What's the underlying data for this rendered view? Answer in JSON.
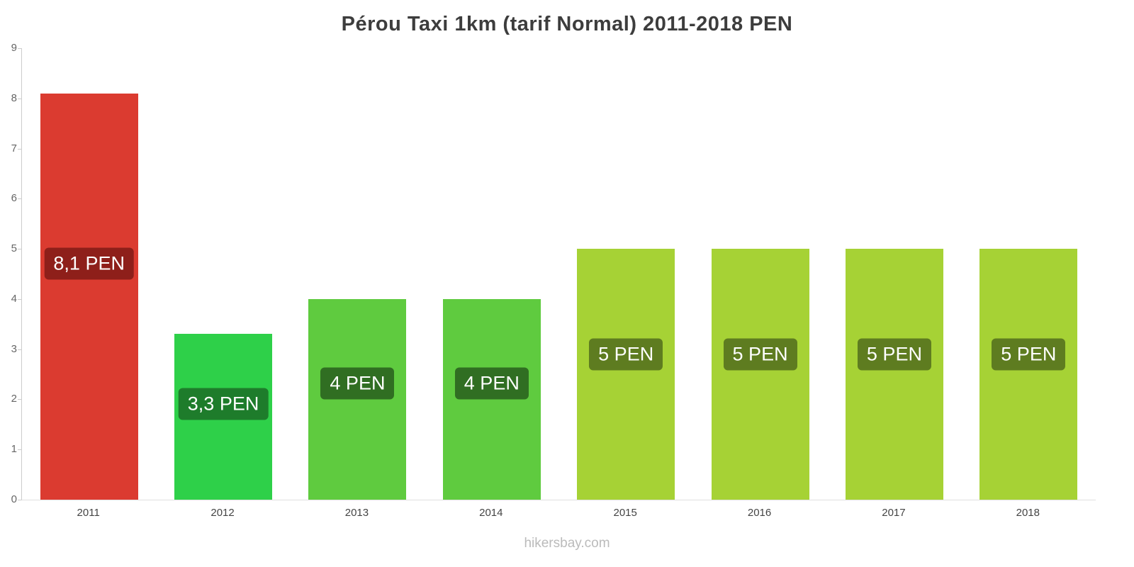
{
  "title": "Pérou Taxi 1km (tarif Normal) 2011-2018 PEN",
  "footer": "hikersbay.com",
  "chart_data": {
    "type": "bar",
    "title": "Pérou Taxi 1km (tarif Normal) 2011-2018 PEN",
    "categories": [
      "2011",
      "2012",
      "2013",
      "2014",
      "2015",
      "2016",
      "2017",
      "2018"
    ],
    "values": [
      8.1,
      3.3,
      4,
      4,
      5,
      5,
      5,
      5
    ],
    "data_labels": [
      "8,1 PEN",
      "3,3 PEN",
      "4 PEN",
      "4 PEN",
      "5 PEN",
      "5 PEN",
      "5 PEN",
      "5 PEN"
    ],
    "bar_colors": [
      "#db3b30",
      "#2ed049",
      "#5fcb3f",
      "#5fcb3f",
      "#a6d235",
      "#a6d235",
      "#a6d235",
      "#a6d235"
    ],
    "label_bg_colors": [
      "#8e1f1a",
      "#1e7c2b",
      "#306e22",
      "#306e22",
      "#5e7c20",
      "#5e7c20",
      "#5e7c20",
      "#5e7c20"
    ],
    "xlabel": "",
    "ylabel": "",
    "ylim": [
      0,
      9
    ],
    "yticks": [
      0,
      1,
      2,
      3,
      4,
      5,
      6,
      7,
      8,
      9
    ],
    "grid": false,
    "legend": false,
    "currency": "PEN"
  }
}
